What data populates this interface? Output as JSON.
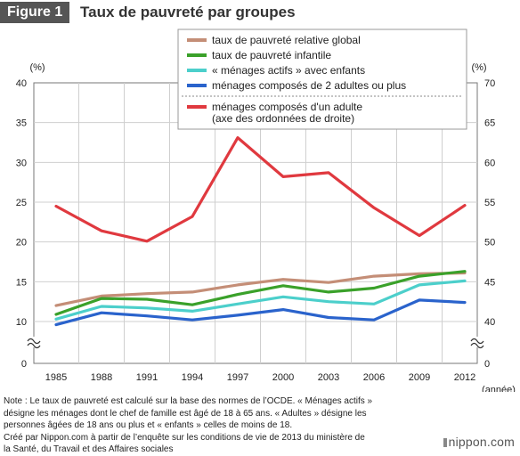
{
  "header": {
    "badge": "Figure 1",
    "title": "Taux de pauvreté par groupes"
  },
  "chart_data": {
    "type": "line",
    "x": [
      1985,
      1988,
      1991,
      1994,
      1997,
      2000,
      2003,
      2006,
      2009,
      2012
    ],
    "x_unit_label": "(année)",
    "y_left": {
      "unit_label": "(%)",
      "ticks": [
        0,
        10,
        15,
        20,
        25,
        30,
        35,
        40
      ],
      "range": [
        0,
        40
      ],
      "axis_break": true
    },
    "y_right": {
      "unit_label": "(%)",
      "ticks": [
        0,
        40,
        45,
        50,
        55,
        60,
        65,
        70
      ],
      "range": [
        0,
        70
      ],
      "axis_break": true
    },
    "series": [
      {
        "name": "taux de pauvreté relative global",
        "color": "#c48e77",
        "axis": "left",
        "values": [
          12.0,
          13.2,
          13.5,
          13.7,
          14.6,
          15.3,
          14.9,
          15.7,
          16.0,
          16.1
        ]
      },
      {
        "name": "taux de pauvreté infantile",
        "color": "#3aa12a",
        "axis": "left",
        "values": [
          10.9,
          12.9,
          12.8,
          12.1,
          13.4,
          14.5,
          13.7,
          14.2,
          15.7,
          16.3
        ]
      },
      {
        "name": "« ménages actifs » avec enfants",
        "color": "#4ccfcb",
        "axis": "left",
        "values": [
          10.3,
          11.9,
          11.7,
          11.3,
          12.2,
          13.1,
          12.5,
          12.2,
          14.6,
          15.1
        ]
      },
      {
        "name": "ménages composés de 2 adultes ou plus",
        "color": "#2a63cc",
        "axis": "left",
        "values": [
          9.6,
          11.1,
          10.7,
          10.2,
          10.8,
          11.5,
          10.5,
          10.2,
          12.7,
          12.4
        ]
      },
      {
        "name": "ménages composés d'un adulte\n(axe des ordonnées de droite)",
        "color": "#e0393f",
        "axis": "right",
        "values": [
          54.5,
          51.4,
          50.1,
          53.2,
          63.1,
          58.2,
          58.7,
          54.3,
          50.8,
          54.6
        ]
      }
    ],
    "grid": true,
    "legend": "top-center"
  },
  "notes": [
    "Note : Le taux de pauvreté est calculé sur la base des normes de l’OCDE. « Ménages actifs »",
    "désigne les ménages dont le chef de famille est âgé de 18 à 65 ans. « Adultes » désigne les",
    "personnes âgées de 18 ans ou plus et « enfants » celles de moins de 18.",
    "Créé par Nippon.com à partir de l’enquête sur les conditions de vie de 2013 du ministère de",
    "la Santé, du Travail et des Affaires sociales"
  ],
  "brand": "nippon.com"
}
